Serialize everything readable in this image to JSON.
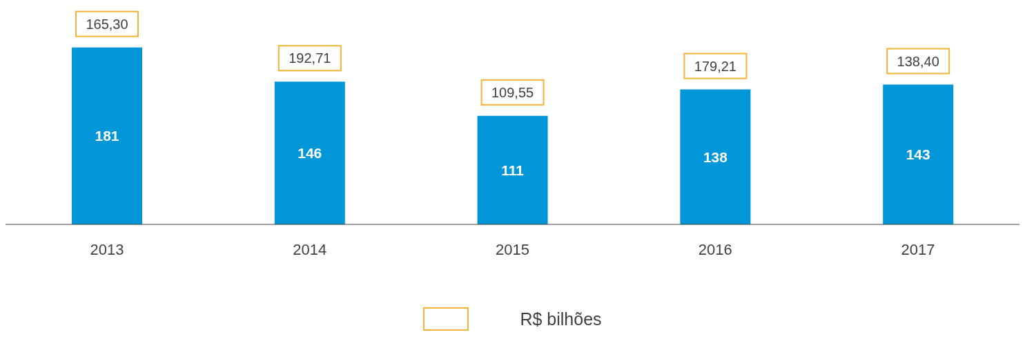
{
  "chart_data": {
    "type": "bar",
    "categories": [
      "2013",
      "2014",
      "2015",
      "2016",
      "2017"
    ],
    "series": [
      {
        "color": "#0096d7",
        "values": [
          181,
          146,
          111,
          138,
          143
        ]
      }
    ],
    "data_labels": true,
    "grid": false,
    "annotations": [
      {
        "text": "165,30",
        "x": "2013",
        "y": 181
      },
      {
        "text": "192,71",
        "x": "2014",
        "y": 146
      },
      {
        "text": "109,55",
        "x": "2015",
        "y": 111
      },
      {
        "text": "179,21",
        "x": "2016",
        "y": 138
      },
      {
        "text": "138,40",
        "x": "2017",
        "y": 143
      },
      "R$ bilhões"
    ]
  }
}
